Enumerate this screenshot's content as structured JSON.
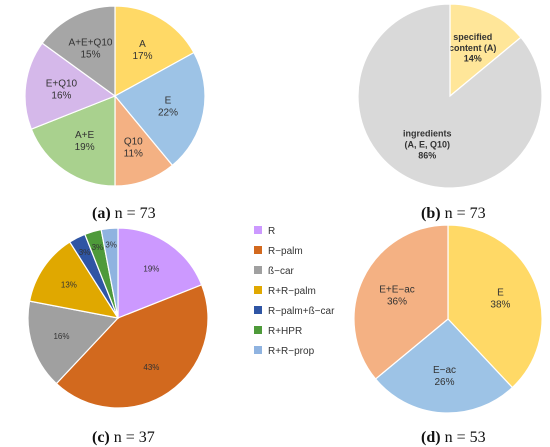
{
  "chart_data": [
    {
      "type": "pie",
      "caption_letter": "(a)",
      "caption_text": " n = 73",
      "slices": [
        {
          "label": "A",
          "value": 17,
          "pct": "17%",
          "color": "#FFD966"
        },
        {
          "label": "E",
          "value": 22,
          "pct": "22%",
          "color": "#9DC3E6"
        },
        {
          "label": "Q10",
          "value": 11,
          "pct": "11%",
          "color": "#F4B183"
        },
        {
          "label": "A+E",
          "value": 19,
          "pct": "19%",
          "color": "#A9D18E"
        },
        {
          "label": "E+Q10",
          "value": 16,
          "pct": "16%",
          "color": "#D5B8EA"
        },
        {
          "label": "A+E+Q10",
          "value": 15,
          "pct": "15%",
          "color": "#A6A6A6"
        }
      ]
    },
    {
      "type": "pie",
      "caption_letter": "(b)",
      "caption_text": " n = 73",
      "slices": [
        {
          "label": "specified content (A)",
          "value": 14,
          "pct": "14%",
          "color": "#FFE699"
        },
        {
          "label": "ingredients (A, E, Q10)",
          "value": 86,
          "pct": "86%",
          "color": "#D9D9D9"
        }
      ]
    },
    {
      "type": "pie",
      "caption_letter": "(c)",
      "caption_text": " n = 37",
      "legend_position": "right",
      "slices": [
        {
          "label": "R",
          "value": 19,
          "pct": "19%",
          "color": "#CC99FF"
        },
        {
          "label": "R−palm",
          "value": 43,
          "pct": "43%",
          "color": "#D2691E"
        },
        {
          "label": "ß−car",
          "value": 16,
          "pct": "16%",
          "color": "#A0A0A0"
        },
        {
          "label": "R+R−palm",
          "value": 13,
          "pct": "13%",
          "color": "#E0A800"
        },
        {
          "label": "R−palm+ß−car",
          "value": 3,
          "pct": "3%",
          "color": "#2F55A4"
        },
        {
          "label": "R+HPR",
          "value": 3,
          "pct": "3%",
          "color": "#4E9A3A"
        },
        {
          "label": "R+R−prop",
          "value": 3,
          "pct": "3%",
          "color": "#8FB3E0"
        }
      ]
    },
    {
      "type": "pie",
      "caption_letter": "(d)",
      "caption_text": " n = 53",
      "slices": [
        {
          "label": "E",
          "value": 38,
          "pct": "38%",
          "color": "#FFD966"
        },
        {
          "label": "E−ac",
          "value": 26,
          "pct": "26%",
          "color": "#9DC3E6"
        },
        {
          "label": "E+E−ac",
          "value": 36,
          "pct": "36%",
          "color": "#F4B183"
        }
      ]
    }
  ]
}
